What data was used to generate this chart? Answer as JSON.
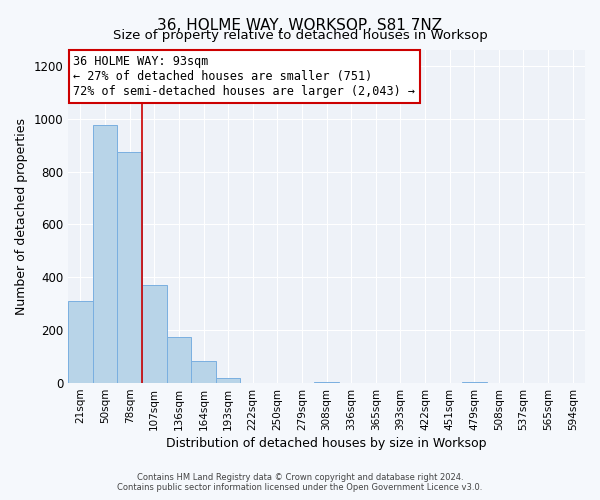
{
  "title": "36, HOLME WAY, WORKSOP, S81 7NZ",
  "subtitle": "Size of property relative to detached houses in Worksop",
  "xlabel": "Distribution of detached houses by size in Worksop",
  "ylabel": "Number of detached properties",
  "bin_labels": [
    "21sqm",
    "50sqm",
    "78sqm",
    "107sqm",
    "136sqm",
    "164sqm",
    "193sqm",
    "222sqm",
    "250sqm",
    "279sqm",
    "308sqm",
    "336sqm",
    "365sqm",
    "393sqm",
    "422sqm",
    "451sqm",
    "479sqm",
    "508sqm",
    "537sqm",
    "565sqm",
    "594sqm"
  ],
  "bar_values": [
    310,
    975,
    875,
    370,
    175,
    85,
    20,
    0,
    0,
    0,
    5,
    0,
    0,
    0,
    0,
    0,
    5,
    0,
    0,
    0,
    0
  ],
  "bar_color": "#b8d4e8",
  "bar_edge_color": "#7aafe0",
  "vline_x_idx": 2,
  "vline_color": "#cc0000",
  "ylim": [
    0,
    1260
  ],
  "yticks": [
    0,
    200,
    400,
    600,
    800,
    1000,
    1200
  ],
  "annotation_title": "36 HOLME WAY: 93sqm",
  "annotation_line1": "← 27% of detached houses are smaller (751)",
  "annotation_line2": "72% of semi-detached houses are larger (2,043) →",
  "annotation_box_facecolor": "#ffffff",
  "annotation_box_edgecolor": "#cc0000",
  "footer1": "Contains HM Land Registry data © Crown copyright and database right 2024.",
  "footer2": "Contains public sector information licensed under the Open Government Licence v3.0.",
  "background_color": "#f5f8fc",
  "plot_bg_color": "#eef2f8",
  "grid_color": "#ffffff",
  "title_fontsize": 11,
  "subtitle_fontsize": 9.5
}
